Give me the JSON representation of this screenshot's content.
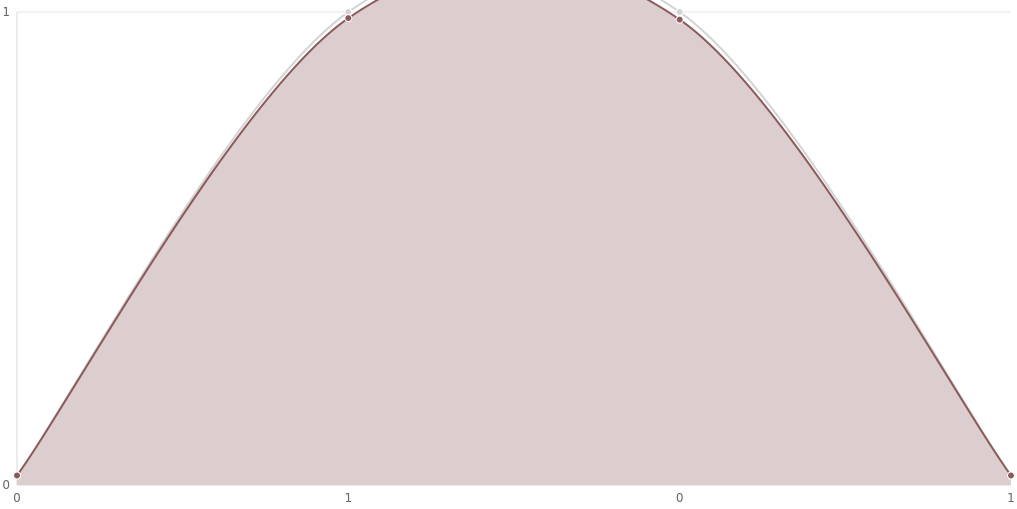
{
  "chart_data": {
    "type": "area",
    "title": "",
    "xlabel": "",
    "ylabel": "",
    "x_tick_labels": [
      "0",
      "1",
      "0",
      "1"
    ],
    "y_tick_labels": [
      "0",
      "1"
    ],
    "ylim": [
      0,
      1
    ],
    "grid": true,
    "legend": "none",
    "series": [
      {
        "values": [
          0.02,
          1.0,
          1.0,
          0.02
        ],
        "color": "#d4d4d4",
        "fill": false
      },
      {
        "values": [
          0.02,
          0.987,
          0.984,
          0.02
        ],
        "color": "#8b5a5a",
        "fill": true,
        "fill_color": "#dccdce"
      }
    ],
    "colors": {
      "grid": "#e6e6e6",
      "axis": "#d9d9d9",
      "tick_text": "#666666"
    }
  }
}
